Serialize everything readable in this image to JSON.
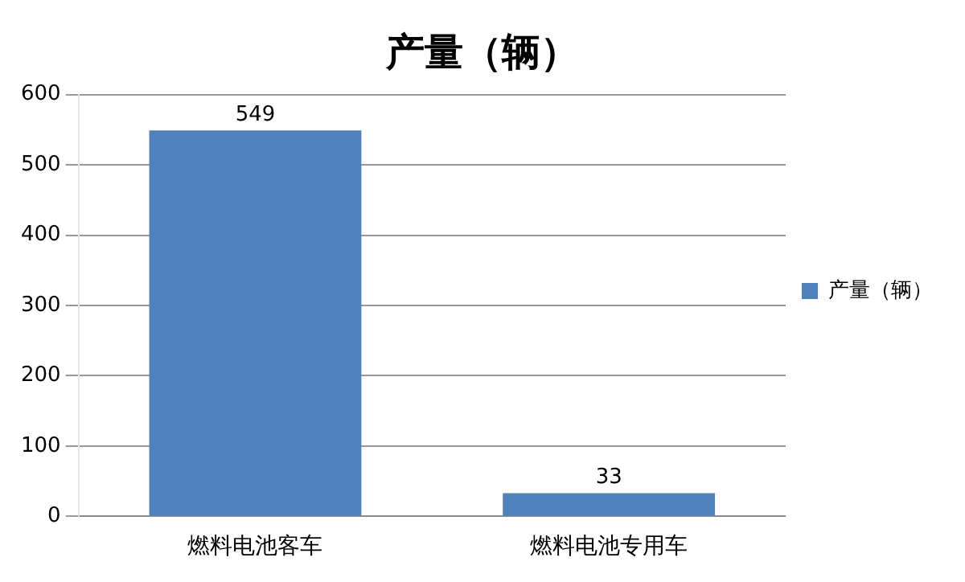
{
  "chart_data": {
    "type": "bar",
    "title": "产量（辆）",
    "categories": [
      "燃料电池客车",
      "燃料电池专用车"
    ],
    "series": [
      {
        "name": "产量（辆）",
        "color": "#4f81bd",
        "values": [
          549,
          33
        ]
      }
    ],
    "ylim": [
      0,
      600
    ],
    "yticks": [
      0,
      100,
      200,
      300,
      400,
      500,
      600
    ],
    "grid": "y",
    "legend": "right",
    "data_labels": true
  }
}
